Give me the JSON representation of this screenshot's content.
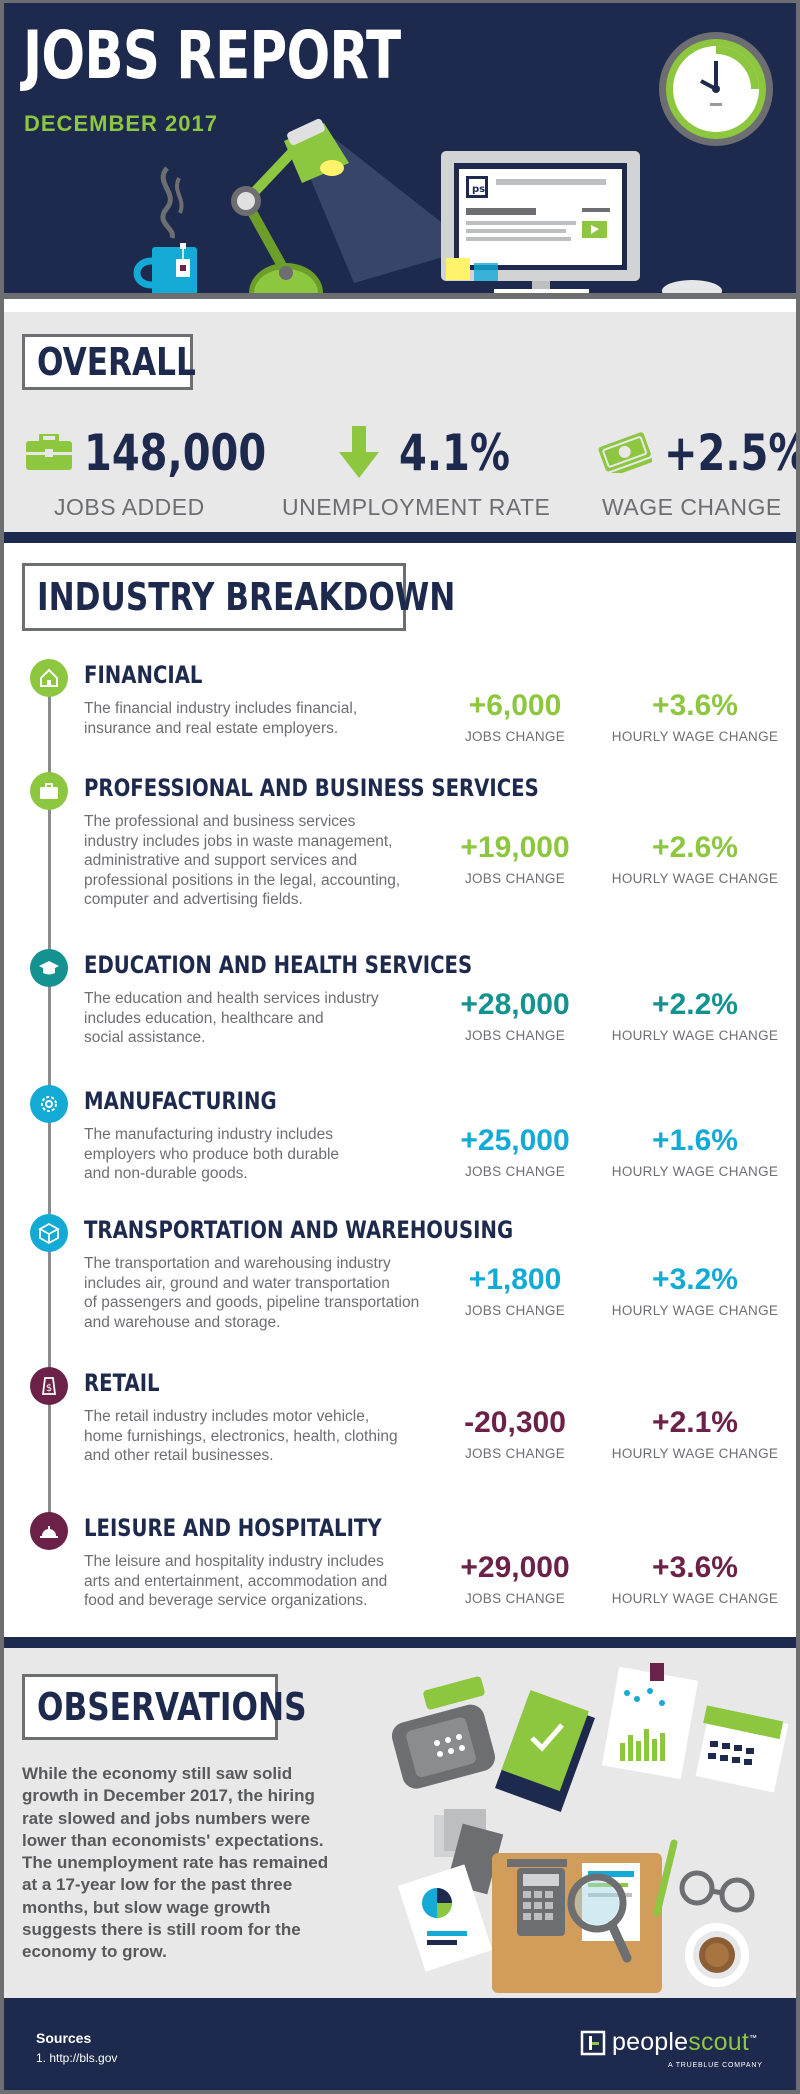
{
  "header": {
    "title": "JOBS REPORT",
    "subtitle": "DECEMBER 2017",
    "monitor_logo": "ps"
  },
  "overall": {
    "heading": "OVERALL",
    "stats": [
      {
        "icon": "briefcase-icon",
        "value": "148,000",
        "label": "JOBS ADDED"
      },
      {
        "icon": "down-arrow-icon",
        "value": "4.1%",
        "label": "UNEMPLOYMENT RATE"
      },
      {
        "icon": "money-icon",
        "value": "+2.5%",
        "label": "WAGE CHANGE"
      }
    ]
  },
  "industry": {
    "heading": "INDUSTRY BREAKDOWN",
    "jobs_label": "JOBS CHANGE",
    "wage_label": "HOURLY WAGE CHANGE",
    "items": [
      {
        "icon": "house-icon",
        "color": "#8dc63f",
        "title": "FINANCIAL",
        "desc": [
          "The financial industry includes financial,",
          "insurance and real estate employers."
        ],
        "jobs": "+6,000",
        "wage": "+3.6%"
      },
      {
        "icon": "briefcase-icon",
        "color": "#8dc63f",
        "title": "PROFESSIONAL AND BUSINESS SERVICES",
        "desc": [
          "The professional and business services",
          "industry includes jobs in waste management,",
          "administrative and support services and",
          "professional positions in the legal, accounting,",
          "computer and advertising fields."
        ],
        "jobs": "+19,000",
        "wage": "+2.6%"
      },
      {
        "icon": "graduation-cap-icon",
        "color": "#14928f",
        "title": "EDUCATION AND HEALTH SERVICES",
        "desc": [
          "The education and health services industry",
          "includes education, healthcare and",
          "social assistance."
        ],
        "jobs": "+28,000",
        "wage": "+2.2%"
      },
      {
        "icon": "gear-icon",
        "color": "#13aad6",
        "title": "MANUFACTURING",
        "desc": [
          "The manufacturing industry includes",
          "employers who produce both durable",
          "and non-durable goods."
        ],
        "jobs": "+25,000",
        "wage": "+1.6%"
      },
      {
        "icon": "box-icon",
        "color": "#13aad6",
        "title": "TRANSPORTATION AND WAREHOUSING",
        "desc": [
          "The transportation and warehousing industry",
          "includes air, ground and water transportation",
          "of passengers and goods, pipeline transportation",
          "and warehouse and storage."
        ],
        "jobs": "+1,800",
        "wage": "+3.2%"
      },
      {
        "icon": "price-tag-icon",
        "color": "#6b2148",
        "title": "RETAIL",
        "desc": [
          "The retail industry includes motor vehicle,",
          "home furnishings, electronics, health, clothing",
          "and other retail businesses."
        ],
        "jobs": "-20,300",
        "wage": "+2.1%"
      },
      {
        "icon": "service-bell-icon",
        "color": "#6b2148",
        "title": "LEISURE AND HOSPITALITY",
        "desc": [
          "The leisure and hospitality industry includes",
          "arts and entertainment, accommodation and",
          "food and beverage service organizations."
        ],
        "jobs": "+29,000",
        "wage": "+3.6%"
      }
    ]
  },
  "observations": {
    "heading": "OBSERVATIONS",
    "text": "While the economy still saw solid growth in December 2017, the hiring rate slowed and jobs numbers were lower than economists' expectations. The unemployment rate has remained at a 17-year low for the past three months, but slow wage growth suggests there is still room for the economy to grow."
  },
  "footer": {
    "sources_title": "Sources",
    "source_1": "1. http://bls.gov",
    "logo_people": "people",
    "logo_scout": "scout",
    "logo_tm": "™",
    "logo_tagline": "A TRUEBLUE COMPANY"
  }
}
